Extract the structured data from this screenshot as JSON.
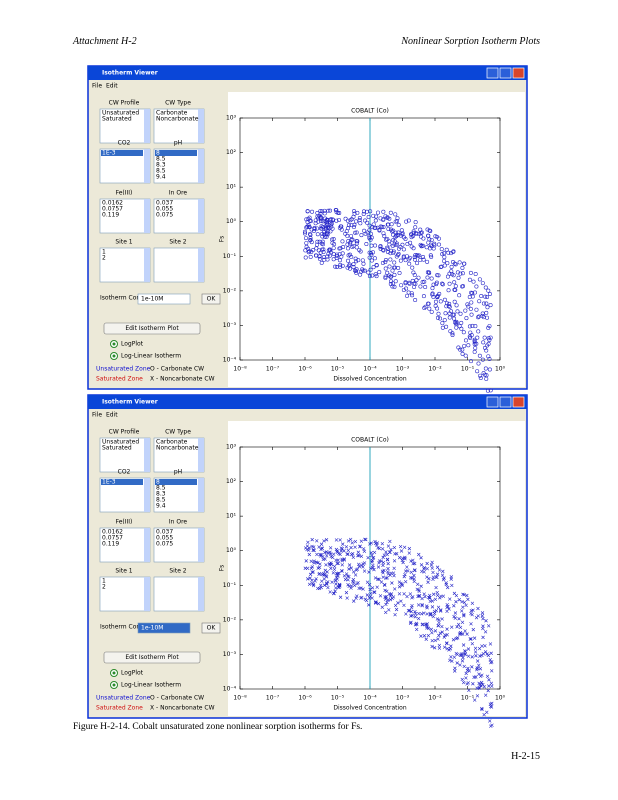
{
  "header": {
    "left": "Attachment   H-2",
    "right": "Nonlinear   Sorption   Isotherm   Plots"
  },
  "windows": [
    {
      "title": "Isotherm Viewer",
      "menu": [
        "File",
        "Edit"
      ],
      "panels": [
        {
          "label": "CW Profile",
          "items": [
            "Unsaturated",
            "Saturated"
          ]
        },
        {
          "label": "CW Type",
          "items": [
            "Carbonate",
            "Noncarbonate"
          ]
        },
        {
          "label": "CO2",
          "items": [
            "1E-3"
          ]
        },
        {
          "label": "pH",
          "items": [
            "8",
            "8.5",
            "8.3",
            "8.5",
            "9.4"
          ]
        },
        {
          "label": "Fe(III)",
          "items": [
            "0.0162",
            "0.0757",
            "0.119"
          ]
        },
        {
          "label": "In Ore",
          "items": [
            "0.037",
            "0.055",
            "0.075"
          ]
        },
        {
          "label": "Site 1",
          "items": [
            "1",
            "2"
          ]
        },
        {
          "label": "Site 2",
          "items": []
        }
      ],
      "conc_label": "Isotherm Concentration",
      "conc_value": "1e-10M",
      "apply": "OK",
      "button": "Edit Isotherm Plot",
      "radios": [
        "LogPlot",
        "Log-Linear Isotherm"
      ],
      "legend_unsat": "Unsaturated Zone",
      "legend_sat": "Saturated Zone",
      "legend_o": "O - Carbonate CW",
      "legend_x": "X - Noncarbonate CW",
      "chart": {
        "type": "scatter",
        "title": "COBALT (Co)",
        "x_label": "Dissolved Concentration",
        "y_label": "Fs",
        "marker": "o",
        "color": "#2626c8",
        "log": true,
        "reference_x": 0.0001,
        "xlim": [
          1e-08,
          1
        ],
        "xticks": [
          {
            "value": 1e-08,
            "label": "10⁻⁸"
          },
          {
            "value": 1e-07,
            "label": "10⁻⁷"
          },
          {
            "value": 1e-06,
            "label": "10⁻⁶"
          },
          {
            "value": 1e-05,
            "label": "10⁻⁵"
          },
          {
            "value": 0.0001,
            "label": "10⁻⁴"
          },
          {
            "value": 0.001,
            "label": "10⁻³"
          },
          {
            "value": 0.01,
            "label": "10⁻²"
          },
          {
            "value": 0.1,
            "label": "10⁻¹"
          },
          {
            "value": 1,
            "label": "10⁰"
          }
        ],
        "ylim": [
          0.0001,
          1000
        ],
        "yticks": [
          {
            "value": 0.0001,
            "label": "10⁻⁴"
          },
          {
            "value": 0.001,
            "label": "10⁻³"
          },
          {
            "value": 0.01,
            "label": "10⁻²"
          },
          {
            "value": 0.1,
            "label": "10⁻¹"
          },
          {
            "value": 1,
            "label": "10⁰"
          },
          {
            "value": 10,
            "label": "10¹"
          },
          {
            "value": 100,
            "label": "10²"
          },
          {
            "value": 1000,
            "label": "10³"
          }
        ]
      }
    },
    {
      "title": "Isotherm Viewer",
      "menu": [
        "File",
        "Edit"
      ],
      "panels": [
        {
          "label": "CW Profile",
          "items": [
            "Unsaturated",
            "Saturated"
          ]
        },
        {
          "label": "CW Type",
          "items": [
            "Carbonate",
            "Noncarbonate"
          ]
        },
        {
          "label": "CO2",
          "items": [
            "1E-3"
          ]
        },
        {
          "label": "pH",
          "items": [
            "8",
            "8.5",
            "8.3",
            "8.5",
            "9.4"
          ]
        },
        {
          "label": "Fe(III)",
          "items": [
            "0.0162",
            "0.0757",
            "0.119"
          ]
        },
        {
          "label": "In Ore",
          "items": [
            "0.037",
            "0.055",
            "0.075"
          ]
        },
        {
          "label": "Site 1",
          "items": [
            "1",
            "2"
          ]
        },
        {
          "label": "Site 2",
          "items": []
        }
      ],
      "conc_label": "Isotherm Concentration",
      "conc_value": "1e-10M",
      "apply": "OK",
      "button": "Edit Isotherm Plot",
      "radios": [
        "LogPlot",
        "Log-Linear Isotherm"
      ],
      "legend_unsat": "Unsaturated Zone",
      "legend_sat": "Saturated Zone",
      "legend_o": "O - Carbonate CW",
      "legend_x": "X - Noncarbonate CW",
      "chart": {
        "type": "scatter",
        "title": "COBALT (Co)",
        "x_label": "Dissolved Concentration",
        "y_label": "Fs",
        "marker": "x",
        "color": "#2626c8",
        "log": true,
        "reference_x": 0.0001,
        "xlim": [
          1e-08,
          1
        ],
        "xticks": [
          {
            "value": 1e-08,
            "label": "10⁻⁸"
          },
          {
            "value": 1e-07,
            "label": "10⁻⁷"
          },
          {
            "value": 1e-06,
            "label": "10⁻⁶"
          },
          {
            "value": 1e-05,
            "label": "10⁻⁵"
          },
          {
            "value": 0.0001,
            "label": "10⁻⁴"
          },
          {
            "value": 0.001,
            "label": "10⁻³"
          },
          {
            "value": 0.01,
            "label": "10⁻²"
          },
          {
            "value": 0.1,
            "label": "10⁻¹"
          },
          {
            "value": 1,
            "label": "10⁰"
          }
        ],
        "ylim": [
          0.0001,
          1000
        ],
        "yticks": [
          {
            "value": 0.0001,
            "label": "10⁻⁴"
          },
          {
            "value": 0.001,
            "label": "10⁻³"
          },
          {
            "value": 0.01,
            "label": "10⁻²"
          },
          {
            "value": 0.1,
            "label": "10⁻¹"
          },
          {
            "value": 1,
            "label": "10⁰"
          },
          {
            "value": 10,
            "label": "10¹"
          },
          {
            "value": 100,
            "label": "10²"
          },
          {
            "value": 1000,
            "label": "10³"
          }
        ]
      }
    }
  ],
  "caption": "Figure H-2-14. Cobalt unsaturated zone nonlinear sorption isotherms for Fs.",
  "page_number": "H-2-15"
}
